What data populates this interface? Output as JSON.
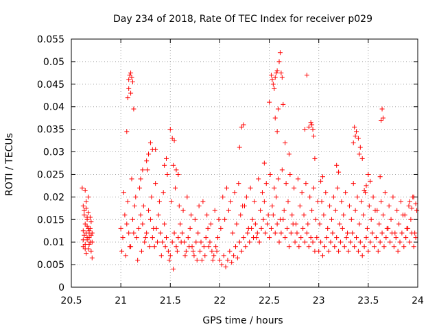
{
  "chart_data": {
    "type": "scatter",
    "title": "Day 234 of 2018, Rate Of TEC Index for receiver p029",
    "xlabel": "GPS time / hours",
    "ylabel": "ROTI / TECUs",
    "xlim": [
      20.5,
      24
    ],
    "ylim": [
      0,
      0.055
    ],
    "xticks": [
      {
        "value": 20.5,
        "label": "20.5"
      },
      {
        "value": 21,
        "label": "21"
      },
      {
        "value": 21.5,
        "label": "21.5"
      },
      {
        "value": 22,
        "label": "22"
      },
      {
        "value": 22.5,
        "label": "22.5"
      },
      {
        "value": 23,
        "label": "23"
      },
      {
        "value": 23.5,
        "label": "23.5"
      },
      {
        "value": 24,
        "label": "24"
      }
    ],
    "yticks": [
      {
        "value": 0,
        "label": "0"
      },
      {
        "value": 0.005,
        "label": "0.005"
      },
      {
        "value": 0.01,
        "label": "0.01"
      },
      {
        "value": 0.015,
        "label": "0.015"
      },
      {
        "value": 0.02,
        "label": "0.02"
      },
      {
        "value": 0.025,
        "label": "0.025"
      },
      {
        "value": 0.03,
        "label": "0.03"
      },
      {
        "value": 0.035,
        "label": "0.035"
      },
      {
        "value": 0.04,
        "label": "0.04"
      },
      {
        "value": 0.045,
        "label": "0.045"
      },
      {
        "value": 0.05,
        "label": "0.05"
      },
      {
        "value": 0.055,
        "label": "0.055"
      }
    ],
    "grid": true,
    "marker": "+",
    "series": [
      {
        "name": "ROTI",
        "color": "#ff0000",
        "x": [
          20.61,
          20.62,
          20.63,
          20.64,
          20.65,
          20.66,
          20.67,
          20.68,
          20.69,
          20.7,
          20.71,
          20.62,
          20.64,
          20.66,
          20.68,
          20.7,
          20.63,
          20.65,
          20.67,
          20.69,
          20.62,
          20.64,
          20.66,
          20.68,
          20.71,
          20.65,
          20.67,
          20.63,
          20.69,
          20.66,
          20.64,
          20.68,
          20.7,
          20.62,
          20.66,
          20.65,
          20.67,
          20.71,
          21.0,
          21.02,
          21.04,
          21.06,
          21.08,
          21.1,
          21.12,
          21.14,
          21.16,
          21.18,
          21.2,
          21.22,
          21.24,
          21.26,
          21.28,
          21.3,
          21.32,
          21.34,
          21.36,
          21.38,
          21.4,
          21.42,
          21.44,
          21.46,
          21.48,
          21.5,
          21.52,
          21.54,
          21.56,
          21.58,
          21.6,
          21.62,
          21.64,
          21.66,
          21.68,
          21.7,
          21.72,
          21.74,
          21.76,
          21.78,
          21.8,
          21.82,
          21.84,
          21.86,
          21.88,
          21.9,
          21.92,
          21.94,
          21.96,
          21.98,
          21.01,
          21.05,
          21.09,
          21.13,
          21.17,
          21.21,
          21.25,
          21.29,
          21.33,
          21.37,
          21.41,
          21.45,
          21.49,
          21.53,
          21.57,
          21.61,
          21.65,
          21.69,
          21.73,
          21.77,
          21.81,
          21.85,
          21.89,
          21.93,
          21.97,
          21.03,
          21.07,
          21.11,
          21.15,
          21.19,
          21.23,
          21.27,
          21.31,
          21.35,
          21.39,
          21.43,
          21.47,
          21.51,
          21.55,
          21.59,
          21.63,
          21.67,
          21.71,
          21.75,
          21.79,
          21.83,
          21.87,
          21.91,
          21.95,
          21.99,
          21.08,
          21.09,
          21.1,
          21.11,
          21.12,
          21.08,
          21.1,
          21.06,
          21.13,
          21.07,
          21.3,
          21.32,
          21.28,
          21.26,
          21.46,
          21.5,
          21.52,
          21.54,
          21.53,
          21.56,
          21.44,
          21.58,
          21.35,
          21.2,
          21.22,
          22.0,
          22.02,
          22.04,
          22.06,
          22.08,
          22.1,
          22.12,
          22.14,
          22.16,
          22.18,
          22.2,
          22.22,
          22.24,
          22.26,
          22.28,
          22.3,
          22.32,
          22.34,
          22.36,
          22.38,
          22.4,
          22.42,
          22.44,
          22.46,
          22.48,
          22.5,
          22.52,
          22.54,
          22.56,
          22.58,
          22.6,
          22.62,
          22.64,
          22.66,
          22.68,
          22.7,
          22.72,
          22.74,
          22.76,
          22.78,
          22.8,
          22.82,
          22.84,
          22.86,
          22.88,
          22.9,
          22.92,
          22.94,
          22.96,
          22.98,
          22.01,
          22.05,
          22.09,
          22.13,
          22.17,
          22.21,
          22.25,
          22.29,
          22.33,
          22.37,
          22.41,
          22.45,
          22.49,
          22.53,
          22.57,
          22.61,
          22.65,
          22.69,
          22.73,
          22.77,
          22.81,
          22.85,
          22.89,
          22.93,
          22.97,
          22.03,
          22.07,
          22.11,
          22.15,
          22.19,
          22.23,
          22.27,
          22.31,
          22.35,
          22.39,
          22.43,
          22.47,
          22.51,
          22.55,
          22.59,
          22.63,
          22.67,
          22.71,
          22.75,
          22.79,
          22.83,
          22.87,
          22.91,
          22.95,
          22.99,
          22.52,
          22.53,
          22.54,
          22.55,
          22.56,
          22.57,
          22.58,
          22.6,
          22.61,
          22.62,
          22.63,
          22.59,
          22.5,
          22.64,
          22.58,
          22.56,
          22.66,
          22.86,
          22.9,
          22.92,
          22.93,
          22.94,
          22.95,
          22.88,
          22.22,
          22.24,
          22.2,
          22.7,
          22.96,
          22.45,
          23.0,
          23.02,
          23.04,
          23.06,
          23.08,
          23.1,
          23.12,
          23.14,
          23.16,
          23.18,
          23.2,
          23.22,
          23.24,
          23.26,
          23.28,
          23.3,
          23.32,
          23.34,
          23.36,
          23.38,
          23.4,
          23.42,
          23.44,
          23.46,
          23.48,
          23.5,
          23.52,
          23.54,
          23.56,
          23.58,
          23.6,
          23.62,
          23.64,
          23.66,
          23.68,
          23.7,
          23.72,
          23.74,
          23.76,
          23.78,
          23.8,
          23.82,
          23.84,
          23.86,
          23.88,
          23.9,
          23.92,
          23.94,
          23.96,
          23.98,
          23.01,
          23.05,
          23.09,
          23.13,
          23.17,
          23.21,
          23.25,
          23.29,
          23.33,
          23.37,
          23.41,
          23.45,
          23.49,
          23.53,
          23.57,
          23.61,
          23.65,
          23.69,
          23.73,
          23.77,
          23.81,
          23.85,
          23.89,
          23.93,
          23.97,
          23.03,
          23.07,
          23.11,
          23.15,
          23.19,
          23.23,
          23.27,
          23.31,
          23.35,
          23.39,
          23.43,
          23.47,
          23.51,
          23.55,
          23.59,
          23.63,
          23.67,
          23.71,
          23.75,
          23.79,
          23.83,
          23.87,
          23.91,
          23.95,
          23.99,
          23.36,
          23.38,
          23.4,
          23.42,
          23.37,
          23.41,
          23.35,
          23.44,
          23.64,
          23.65,
          23.63,
          23.62,
          23.5,
          23.52,
          23.46,
          23.48,
          23.18,
          23.2,
          23.02,
          23.04,
          23.96,
          23.98,
          23.94,
          23.92
        ],
        "y": [
          0.022,
          0.018,
          0.016,
          0.014,
          0.012,
          0.015,
          0.013,
          0.011,
          0.01,
          0.008,
          0.012,
          0.0105,
          0.0095,
          0.0135,
          0.0125,
          0.0145,
          0.017,
          0.019,
          0.0165,
          0.0155,
          0.009,
          0.0085,
          0.011,
          0.012,
          0.0065,
          0.0175,
          0.02,
          0.0115,
          0.013,
          0.0105,
          0.0215,
          0.0095,
          0.0115,
          0.0125,
          0.0155,
          0.0075,
          0.0085,
          0.01,
          0.013,
          0.011,
          0.016,
          0.014,
          0.012,
          0.009,
          0.015,
          0.018,
          0.011,
          0.013,
          0.016,
          0.014,
          0.01,
          0.012,
          0.017,
          0.015,
          0.011,
          0.009,
          0.013,
          0.016,
          0.012,
          0.01,
          0.014,
          0.011,
          0.008,
          0.007,
          0.01,
          0.012,
          0.009,
          0.011,
          0.014,
          0.012,
          0.01,
          0.008,
          0.011,
          0.013,
          0.009,
          0.007,
          0.01,
          0.012,
          0.008,
          0.006,
          0.009,
          0.011,
          0.013,
          0.01,
          0.008,
          0.007,
          0.009,
          0.011,
          0.008,
          0.007,
          0.009,
          0.012,
          0.006,
          0.008,
          0.011,
          0.009,
          0.013,
          0.01,
          0.007,
          0.009,
          0.006,
          0.004,
          0.008,
          0.01,
          0.007,
          0.009,
          0.008,
          0.006,
          0.01,
          0.007,
          0.009,
          0.006,
          0.008,
          0.021,
          0.019,
          0.024,
          0.02,
          0.022,
          0.018,
          0.026,
          0.02,
          0.023,
          0.019,
          0.021,
          0.025,
          0.019,
          0.022,
          0.018,
          0.017,
          0.02,
          0.016,
          0.015,
          0.018,
          0.019,
          0.016,
          0.014,
          0.017,
          0.015,
          0.046,
          0.047,
          0.0475,
          0.0465,
          0.0455,
          0.044,
          0.043,
          0.0345,
          0.0395,
          0.042,
          0.032,
          0.0305,
          0.0295,
          0.028,
          0.0285,
          0.035,
          0.033,
          0.0325,
          0.027,
          0.026,
          0.027,
          0.025,
          0.0305,
          0.024,
          0.026,
          0.006,
          0.005,
          0.007,
          0.0045,
          0.006,
          0.008,
          0.0055,
          0.007,
          0.009,
          0.0065,
          0.01,
          0.008,
          0.011,
          0.009,
          0.012,
          0.01,
          0.013,
          0.011,
          0.014,
          0.012,
          0.01,
          0.013,
          0.015,
          0.012,
          0.014,
          0.011,
          0.013,
          0.016,
          0.012,
          0.014,
          0.01,
          0.012,
          0.015,
          0.011,
          0.013,
          0.009,
          0.012,
          0.014,
          0.01,
          0.012,
          0.009,
          0.011,
          0.013,
          0.01,
          0.012,
          0.009,
          0.011,
          0.01,
          0.008,
          0.011,
          0.013,
          0.015,
          0.017,
          0.012,
          0.014,
          0.016,
          0.018,
          0.013,
          0.015,
          0.011,
          0.017,
          0.019,
          0.016,
          0.018,
          0.02,
          0.015,
          0.017,
          0.019,
          0.016,
          0.014,
          0.018,
          0.016,
          0.014,
          0.017,
          0.015,
          0.02,
          0.022,
          0.019,
          0.021,
          0.023,
          0.018,
          0.02,
          0.022,
          0.019,
          0.024,
          0.021,
          0.023,
          0.025,
          0.022,
          0.024,
          0.026,
          0.023,
          0.025,
          0.022,
          0.024,
          0.021,
          0.023,
          0.02,
          0.022,
          0.019,
          0.047,
          0.046,
          0.045,
          0.044,
          0.0465,
          0.0475,
          0.048,
          0.05,
          0.052,
          0.0475,
          0.0465,
          0.0395,
          0.041,
          0.0405,
          0.0345,
          0.0375,
          0.032,
          0.035,
          0.0355,
          0.0365,
          0.036,
          0.035,
          0.0335,
          0.047,
          0.0355,
          0.036,
          0.031,
          0.0295,
          0.0285,
          0.0275,
          0.008,
          0.01,
          0.007,
          0.009,
          0.011,
          0.008,
          0.01,
          0.012,
          0.009,
          0.011,
          0.008,
          0.01,
          0.013,
          0.009,
          0.011,
          0.008,
          0.01,
          0.012,
          0.009,
          0.011,
          0.008,
          0.01,
          0.007,
          0.009,
          0.011,
          0.008,
          0.01,
          0.012,
          0.009,
          0.011,
          0.008,
          0.01,
          0.012,
          0.009,
          0.011,
          0.013,
          0.01,
          0.012,
          0.009,
          0.011,
          0.008,
          0.01,
          0.012,
          0.009,
          0.011,
          0.013,
          0.01,
          0.012,
          0.009,
          0.011,
          0.014,
          0.016,
          0.013,
          0.015,
          0.017,
          0.014,
          0.016,
          0.012,
          0.015,
          0.017,
          0.014,
          0.016,
          0.013,
          0.015,
          0.017,
          0.014,
          0.016,
          0.013,
          0.015,
          0.012,
          0.014,
          0.016,
          0.013,
          0.015,
          0.012,
          0.019,
          0.021,
          0.018,
          0.02,
          0.022,
          0.019,
          0.021,
          0.018,
          0.023,
          0.02,
          0.019,
          0.021,
          0.018,
          0.02,
          0.017,
          0.019,
          0.021,
          0.018,
          0.02,
          0.017,
          0.019,
          0.016,
          0.018,
          0.02,
          0.017,
          0.0355,
          0.0345,
          0.033,
          0.031,
          0.0335,
          0.0295,
          0.032,
          0.0285,
          0.0395,
          0.0375,
          0.037,
          0.0245,
          0.025,
          0.0235,
          0.0215,
          0.0225,
          0.027,
          0.0255,
          0.0235,
          0.0245,
          0.02,
          0.0185,
          0.0175,
          0.019
        ]
      }
    ]
  }
}
